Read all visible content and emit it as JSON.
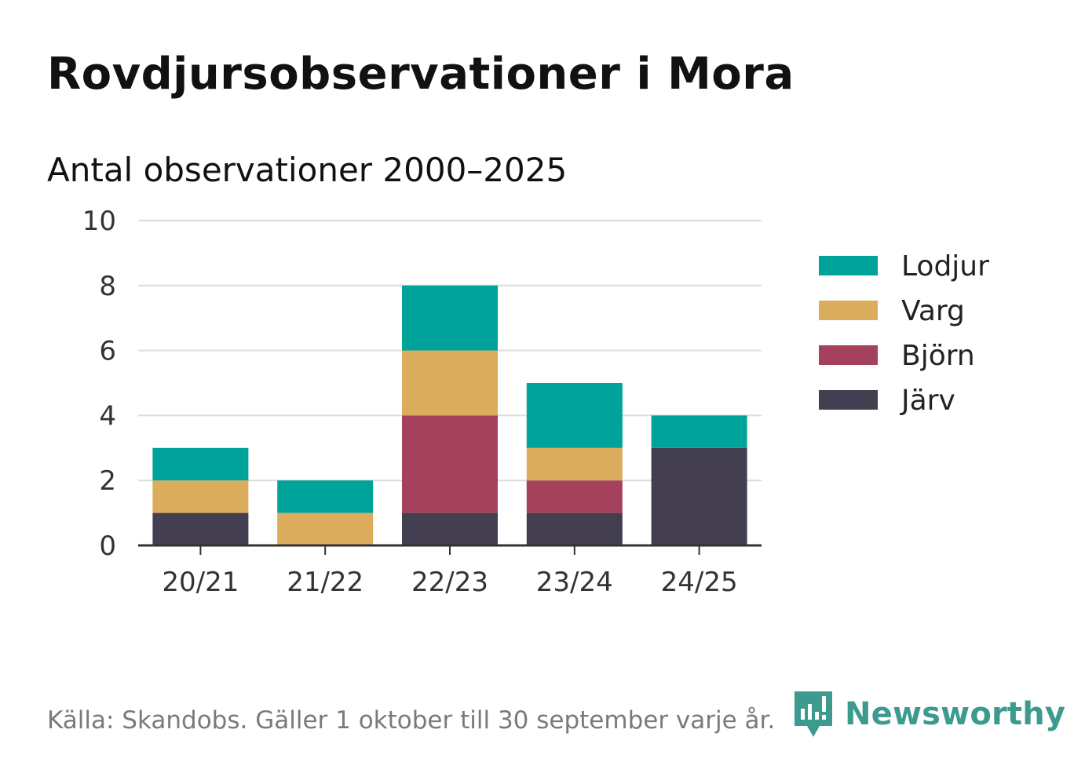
{
  "header": {
    "title": "Rovdjursobservationer i Mora",
    "subtitle": "Antal observationer 2000–2025"
  },
  "footer": {
    "source": "Källa: Skandobs. Gäller 1 oktober till 30 september varje år.",
    "brand": "Newsworthy",
    "brand_icon": "newsworthy-logo-icon",
    "brand_color": "#3d9a8f"
  },
  "chart_data": {
    "type": "bar",
    "stacked": true,
    "title": "Rovdjursobservationer i Mora",
    "subtitle": "Antal observationer 2000–2025",
    "xlabel": "",
    "ylabel": "",
    "categories": [
      "20/21",
      "21/22",
      "22/23",
      "23/24",
      "24/25"
    ],
    "ylim": [
      0,
      10
    ],
    "yticks": [
      0,
      2,
      4,
      6,
      8,
      10
    ],
    "ytick_labels": [
      "0",
      "2",
      "4",
      "6",
      "8",
      "10"
    ],
    "grid": true,
    "legend_position": "right",
    "series": [
      {
        "name": "Järv",
        "color": "#433f51",
        "values": [
          1,
          0,
          1,
          1,
          3
        ]
      },
      {
        "name": "Björn",
        "color": "#a5415d",
        "values": [
          0,
          0,
          3,
          1,
          0
        ]
      },
      {
        "name": "Varg",
        "color": "#dbac5b",
        "values": [
          1,
          1,
          2,
          1,
          0
        ]
      },
      {
        "name": "Lodjur",
        "color": "#00a39a",
        "values": [
          1,
          1,
          2,
          2,
          1
        ]
      }
    ],
    "legend_order": [
      "Lodjur",
      "Varg",
      "Björn",
      "Järv"
    ]
  }
}
